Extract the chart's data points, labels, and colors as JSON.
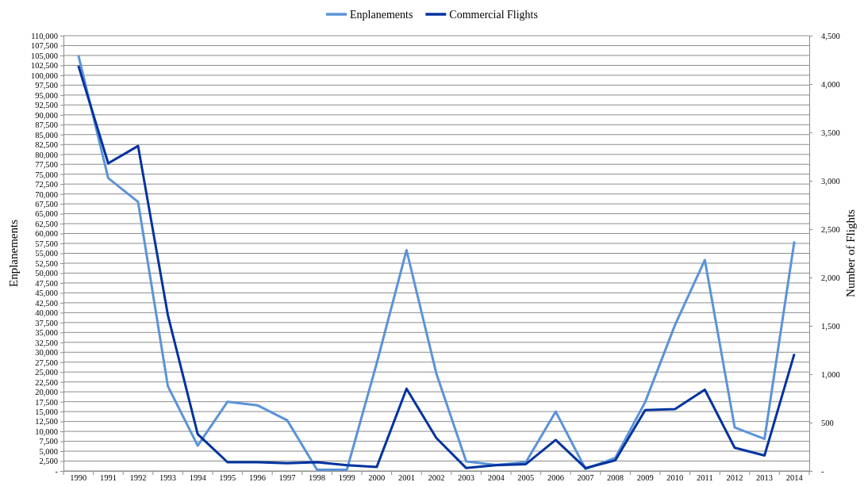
{
  "chart_data": {
    "type": "line",
    "xlabel": null,
    "ylabel": "Enplanements",
    "y2label": "Number of Flights",
    "categories": [
      "1990",
      "1991",
      "1992",
      "1993",
      "1994",
      "1995",
      "1996",
      "1997",
      "1998",
      "1999",
      "2000",
      "2001",
      "2002",
      "2003",
      "2004",
      "2005",
      "2006",
      "2007",
      "2008",
      "2009",
      "2010",
      "2011",
      "2012",
      "2013",
      "2014"
    ],
    "series": [
      {
        "name": "Enplanements",
        "color": "#5b93d8",
        "values": [
          105000,
          74000,
          68000,
          21400,
          6400,
          17500,
          16600,
          12800,
          300,
          300,
          27200,
          55800,
          24600,
          2400,
          1500,
          2200,
          15000,
          500,
          3300,
          17400,
          36900,
          53300,
          11000,
          8100,
          58000
        ]
      },
      {
        "name": "Commercial Flights",
        "color": "#0033a0",
        "axis": "y2",
        "values": [
          4190,
          3180,
          3360,
          1610,
          380,
          90,
          90,
          80,
          90,
          60,
          40,
          850,
          340,
          30,
          60,
          70,
          320,
          30,
          110,
          630,
          640,
          840,
          240,
          160,
          1210
        ]
      }
    ],
    "ylim": [
      0,
      110000
    ],
    "yticks": [
      {
        "value": 0,
        "label": "-"
      },
      {
        "value": 2500,
        "label": "2,500"
      },
      {
        "value": 5000,
        "label": "5,000"
      },
      {
        "value": 7500,
        "label": "7,500"
      },
      {
        "value": 10000,
        "label": "10,000"
      },
      {
        "value": 12500,
        "label": "12,500"
      },
      {
        "value": 15000,
        "label": "15,000"
      },
      {
        "value": 17500,
        "label": "17,500"
      },
      {
        "value": 20000,
        "label": "20,000"
      },
      {
        "value": 22500,
        "label": "22,500"
      },
      {
        "value": 25000,
        "label": "25,000"
      },
      {
        "value": 27500,
        "label": "27,500"
      },
      {
        "value": 30000,
        "label": "30,000"
      },
      {
        "value": 32500,
        "label": "32,500"
      },
      {
        "value": 35000,
        "label": "35,000"
      },
      {
        "value": 37500,
        "label": "37,500"
      },
      {
        "value": 40000,
        "label": "40,000"
      },
      {
        "value": 42500,
        "label": "42,500"
      },
      {
        "value": 45000,
        "label": "45,000"
      },
      {
        "value": 47500,
        "label": "47,500"
      },
      {
        "value": 50000,
        "label": "50,000"
      },
      {
        "value": 52500,
        "label": "52,500"
      },
      {
        "value": 55000,
        "label": "55,000"
      },
      {
        "value": 57500,
        "label": "57,500"
      },
      {
        "value": 60000,
        "label": "60,000"
      },
      {
        "value": 62500,
        "label": "62,500"
      },
      {
        "value": 65000,
        "label": "65,000"
      },
      {
        "value": 67500,
        "label": "67,500"
      },
      {
        "value": 70000,
        "label": "70,000"
      },
      {
        "value": 72500,
        "label": "72,500"
      },
      {
        "value": 75000,
        "label": "75,000"
      },
      {
        "value": 77500,
        "label": "77,500"
      },
      {
        "value": 80000,
        "label": "80,000"
      },
      {
        "value": 82500,
        "label": "82,500"
      },
      {
        "value": 85000,
        "label": "85,000"
      },
      {
        "value": 87500,
        "label": "87,500"
      },
      {
        "value": 90000,
        "label": "90,000"
      },
      {
        "value": 92500,
        "label": "92,500"
      },
      {
        "value": 95000,
        "label": "95,000"
      },
      {
        "value": 97500,
        "label": "97,500"
      },
      {
        "value": 100000,
        "label": "100,000"
      },
      {
        "value": 102500,
        "label": "102,500"
      },
      {
        "value": 105000,
        "label": "105,000"
      },
      {
        "value": 107500,
        "label": "107,500"
      },
      {
        "value": 110000,
        "label": "110,000"
      }
    ],
    "y2lim": [
      0,
      4500
    ],
    "y2ticks": [
      {
        "value": 0,
        "label": "-"
      },
      {
        "value": 500,
        "label": "500"
      },
      {
        "value": 1000,
        "label": "1,000"
      },
      {
        "value": 1500,
        "label": "1,500"
      },
      {
        "value": 2000,
        "label": "2,000"
      },
      {
        "value": 2500,
        "label": "2,500"
      },
      {
        "value": 3000,
        "label": "3,000"
      },
      {
        "value": 3500,
        "label": "3,500"
      },
      {
        "value": 4000,
        "label": "4,000"
      },
      {
        "value": 4500,
        "label": "4,500"
      }
    ],
    "grid": "y",
    "legend": "top",
    "marker": "none",
    "line_style": "solid"
  }
}
